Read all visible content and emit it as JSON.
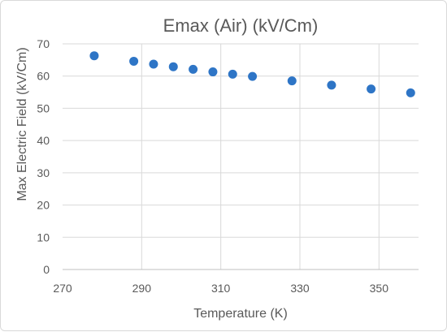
{
  "chart_data": {
    "type": "scatter",
    "title": "Emax (Air) (kV/Cm)",
    "xlabel": "Temperature (K)",
    "ylabel": "Max Electric Field (kV/Cm)",
    "xlim": [
      270,
      360
    ],
    "ylim": [
      0,
      70
    ],
    "x_ticks": [
      "270",
      "290",
      "310",
      "330",
      "350"
    ],
    "y_ticks": [
      "0",
      "10",
      "20",
      "30",
      "40",
      "50",
      "60",
      "70"
    ],
    "x_tick_values": [
      270,
      290,
      310,
      330,
      350
    ],
    "y_tick_values": [
      0,
      10,
      20,
      30,
      40,
      50,
      60,
      70
    ],
    "grid": true,
    "marker_color": "#2E75C6",
    "points": [
      {
        "x": 278,
        "y": 66.3
      },
      {
        "x": 288,
        "y": 64.6
      },
      {
        "x": 293,
        "y": 63.7
      },
      {
        "x": 298,
        "y": 62.9
      },
      {
        "x": 303,
        "y": 62.1
      },
      {
        "x": 308,
        "y": 61.3
      },
      {
        "x": 313,
        "y": 60.6
      },
      {
        "x": 318,
        "y": 59.9
      },
      {
        "x": 328,
        "y": 58.5
      },
      {
        "x": 338,
        "y": 57.2
      },
      {
        "x": 348,
        "y": 56.0
      },
      {
        "x": 358,
        "y": 54.8
      }
    ]
  }
}
